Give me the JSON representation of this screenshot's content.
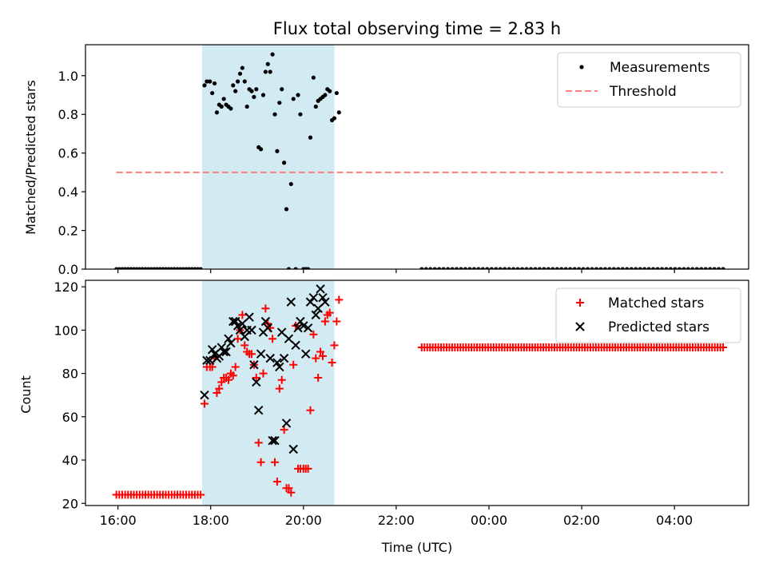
{
  "title": "Flux total observing time = 2.83 h",
  "colors": {
    "shade": "#add8e6",
    "measurement": "#000000",
    "threshold": "#ff7f7f",
    "matched": "#ff0000",
    "predicted": "#000000",
    "axes": "#000000"
  },
  "chart_data": [
    {
      "type": "scatter",
      "xlabel": "",
      "ylabel": "Matched/Predicted stars",
      "xlim": [
        "15:18",
        "05:36"
      ],
      "ylim": [
        0,
        1.16
      ],
      "yticks": [
        "0.0",
        "0.2",
        "0.4",
        "0.6",
        "0.8",
        "1.0"
      ],
      "grid": false,
      "legend": "top-right",
      "shaded_interval": [
        "17:49",
        "20:40"
      ],
      "threshold": {
        "name": "Threshold",
        "y": 0.5,
        "x_range": [
          "15:58",
          "05:03"
        ],
        "style": "dashed"
      },
      "series": [
        {
          "name": "Measurements",
          "marker": "dot",
          "flat_segments": [
            {
              "x_from": "15:58",
              "x_to": "17:47",
              "count": 30,
              "y": 0
            },
            {
              "x_from": "22:33",
              "x_to": "05:03",
              "count": 70,
              "y": 0
            }
          ],
          "points": [
            [
              "17:52",
              0.95
            ],
            [
              "17:55",
              0.97
            ],
            [
              "17:59",
              0.97
            ],
            [
              "18:02",
              0.91
            ],
            [
              "18:05",
              0.96
            ],
            [
              "18:08",
              0.81
            ],
            [
              "18:11",
              0.85
            ],
            [
              "18:14",
              0.84
            ],
            [
              "18:17",
              0.88
            ],
            [
              "18:20",
              0.85
            ],
            [
              "18:23",
              0.84
            ],
            [
              "18:26",
              0.83
            ],
            [
              "18:29",
              0.95
            ],
            [
              "18:32",
              0.92
            ],
            [
              "18:35",
              0.97
            ],
            [
              "18:38",
              1.01
            ],
            [
              "18:41",
              1.04
            ],
            [
              "18:44",
              0.97
            ],
            [
              "18:47",
              0.84
            ],
            [
              "18:50",
              0.93
            ],
            [
              "18:53",
              0.92
            ],
            [
              "18:56",
              0.89
            ],
            [
              "18:59",
              0.93
            ],
            [
              "19:02",
              0.63
            ],
            [
              "19:05",
              0.62
            ],
            [
              "19:08",
              0.9
            ],
            [
              "19:11",
              1.02
            ],
            [
              "19:14",
              1.06
            ],
            [
              "19:17",
              1.02
            ],
            [
              "19:20",
              1.11
            ],
            [
              "19:23",
              0.8
            ],
            [
              "19:26",
              0.61
            ],
            [
              "19:29",
              0.86
            ],
            [
              "19:32",
              0.93
            ],
            [
              "19:35",
              0.55
            ],
            [
              "19:38",
              0.31
            ],
            [
              "19:41",
              0.0
            ],
            [
              "19:44",
              0.44
            ],
            [
              "19:47",
              0.88
            ],
            [
              "19:50",
              0.0
            ],
            [
              "19:53",
              0.9
            ],
            [
              "19:56",
              0.8
            ],
            [
              "20:00",
              0.0
            ],
            [
              "20:03",
              0.0
            ],
            [
              "20:06",
              0.0
            ],
            [
              "20:09",
              0.68
            ],
            [
              "20:13",
              0.99
            ],
            [
              "20:16",
              0.84
            ],
            [
              "20:19",
              0.87
            ],
            [
              "20:22",
              0.88
            ],
            [
              "20:25",
              0.89
            ],
            [
              "20:28",
              0.9
            ],
            [
              "20:31",
              0.93
            ],
            [
              "20:34",
              0.92
            ],
            [
              "20:37",
              0.77
            ],
            [
              "20:40",
              0.78
            ],
            [
              "20:43",
              0.91
            ],
            [
              "20:46",
              0.81
            ]
          ]
        }
      ]
    },
    {
      "type": "scatter",
      "xlabel": "Time (UTC)",
      "ylabel": "Count",
      "xlim": [
        "15:18",
        "05:36"
      ],
      "ylim": [
        19,
        123
      ],
      "yticks": [
        "20",
        "40",
        "60",
        "80",
        "100",
        "120"
      ],
      "xticks": [
        "16:00",
        "18:00",
        "20:00",
        "22:00",
        "00:00",
        "02:00",
        "04:00"
      ],
      "grid": false,
      "legend": "top-right",
      "shaded_interval": [
        "17:49",
        "20:40"
      ],
      "series": [
        {
          "name": "Matched stars",
          "marker": "plus",
          "flat_segments": [
            {
              "x_from": "15:58",
              "x_to": "17:47",
              "count": 30,
              "y": 24
            },
            {
              "x_from": "22:33",
              "x_to": "05:03",
              "count": 110,
              "y": 92
            }
          ],
          "points": [
            [
              "17:52",
              66
            ],
            [
              "17:55",
              83
            ],
            [
              "17:59",
              83
            ],
            [
              "18:02",
              83
            ],
            [
              "18:05",
              87
            ],
            [
              "18:08",
              71
            ],
            [
              "18:11",
              73
            ],
            [
              "18:14",
              76
            ],
            [
              "18:17",
              78
            ],
            [
              "18:20",
              78
            ],
            [
              "18:23",
              77
            ],
            [
              "18:26",
              80
            ],
            [
              "18:29",
              79
            ],
            [
              "18:32",
              83
            ],
            [
              "18:35",
              96
            ],
            [
              "18:38",
              100
            ],
            [
              "18:41",
              107
            ],
            [
              "18:44",
              93
            ],
            [
              "18:47",
              90
            ],
            [
              "18:50",
              89
            ],
            [
              "18:53",
              89
            ],
            [
              "18:56",
              84
            ],
            [
              "18:59",
              78
            ],
            [
              "19:02",
              48
            ],
            [
              "19:05",
              39
            ],
            [
              "19:08",
              80
            ],
            [
              "19:11",
              110
            ],
            [
              "19:14",
              103
            ],
            [
              "19:17",
              101
            ],
            [
              "19:20",
              96
            ],
            [
              "19:23",
              39
            ],
            [
              "19:26",
              30
            ],
            [
              "19:29",
              73
            ],
            [
              "19:32",
              77
            ],
            [
              "19:35",
              54
            ],
            [
              "19:38",
              27
            ],
            [
              "19:41",
              27
            ],
            [
              "19:44",
              25
            ],
            [
              "19:47",
              84
            ],
            [
              "19:50",
              102
            ],
            [
              "19:53",
              36
            ],
            [
              "19:56",
              36
            ],
            [
              "20:00",
              36
            ],
            [
              "20:03",
              36
            ],
            [
              "20:06",
              36
            ],
            [
              "20:09",
              63
            ],
            [
              "20:13",
              98
            ],
            [
              "20:16",
              87
            ],
            [
              "20:19",
              78
            ],
            [
              "20:22",
              90
            ],
            [
              "20:25",
              88
            ],
            [
              "20:28",
              104
            ],
            [
              "20:31",
              107
            ],
            [
              "20:34",
              108
            ],
            [
              "20:37",
              85
            ],
            [
              "20:40",
              93
            ],
            [
              "20:43",
              104
            ],
            [
              "20:46",
              114
            ]
          ]
        },
        {
          "name": "Predicted stars",
          "marker": "x",
          "points": [
            [
              "17:52",
              70
            ],
            [
              "17:55",
              86
            ],
            [
              "17:59",
              86
            ],
            [
              "18:02",
              91
            ],
            [
              "18:05",
              89
            ],
            [
              "18:08",
              87
            ],
            [
              "18:11",
              88
            ],
            [
              "18:14",
              92
            ],
            [
              "18:17",
              90
            ],
            [
              "18:20",
              90
            ],
            [
              "18:23",
              96
            ],
            [
              "18:26",
              94
            ],
            [
              "18:29",
              104
            ],
            [
              "18:32",
              104
            ],
            [
              "18:35",
              102
            ],
            [
              "18:38",
              100
            ],
            [
              "18:41",
              103
            ],
            [
              "18:44",
              97
            ],
            [
              "18:47",
              100
            ],
            [
              "18:50",
              106
            ],
            [
              "18:53",
              100
            ],
            [
              "18:56",
              84
            ],
            [
              "18:59",
              76
            ],
            [
              "19:02",
              63
            ],
            [
              "19:05",
              89
            ],
            [
              "19:08",
              99
            ],
            [
              "19:11",
              104
            ],
            [
              "19:14",
              101
            ],
            [
              "19:17",
              87
            ],
            [
              "19:20",
              49
            ],
            [
              "19:23",
              49
            ],
            [
              "19:26",
              85
            ],
            [
              "19:29",
              83
            ],
            [
              "19:32",
              99
            ],
            [
              "19:35",
              87
            ],
            [
              "19:38",
              57
            ],
            [
              "19:41",
              96
            ],
            [
              "19:44",
              113
            ],
            [
              "19:47",
              45
            ],
            [
              "19:50",
              93
            ],
            [
              "19:53",
              101
            ],
            [
              "19:56",
              104
            ],
            [
              "20:00",
              102
            ],
            [
              "20:03",
              89
            ],
            [
              "20:06",
              101
            ],
            [
              "20:09",
              113
            ],
            [
              "20:13",
              115
            ],
            [
              "20:16",
              107
            ],
            [
              "20:19",
              110
            ],
            [
              "20:22",
              119
            ],
            [
              "20:25",
              115
            ],
            [
              "20:28",
              113
            ]
          ]
        }
      ]
    }
  ]
}
